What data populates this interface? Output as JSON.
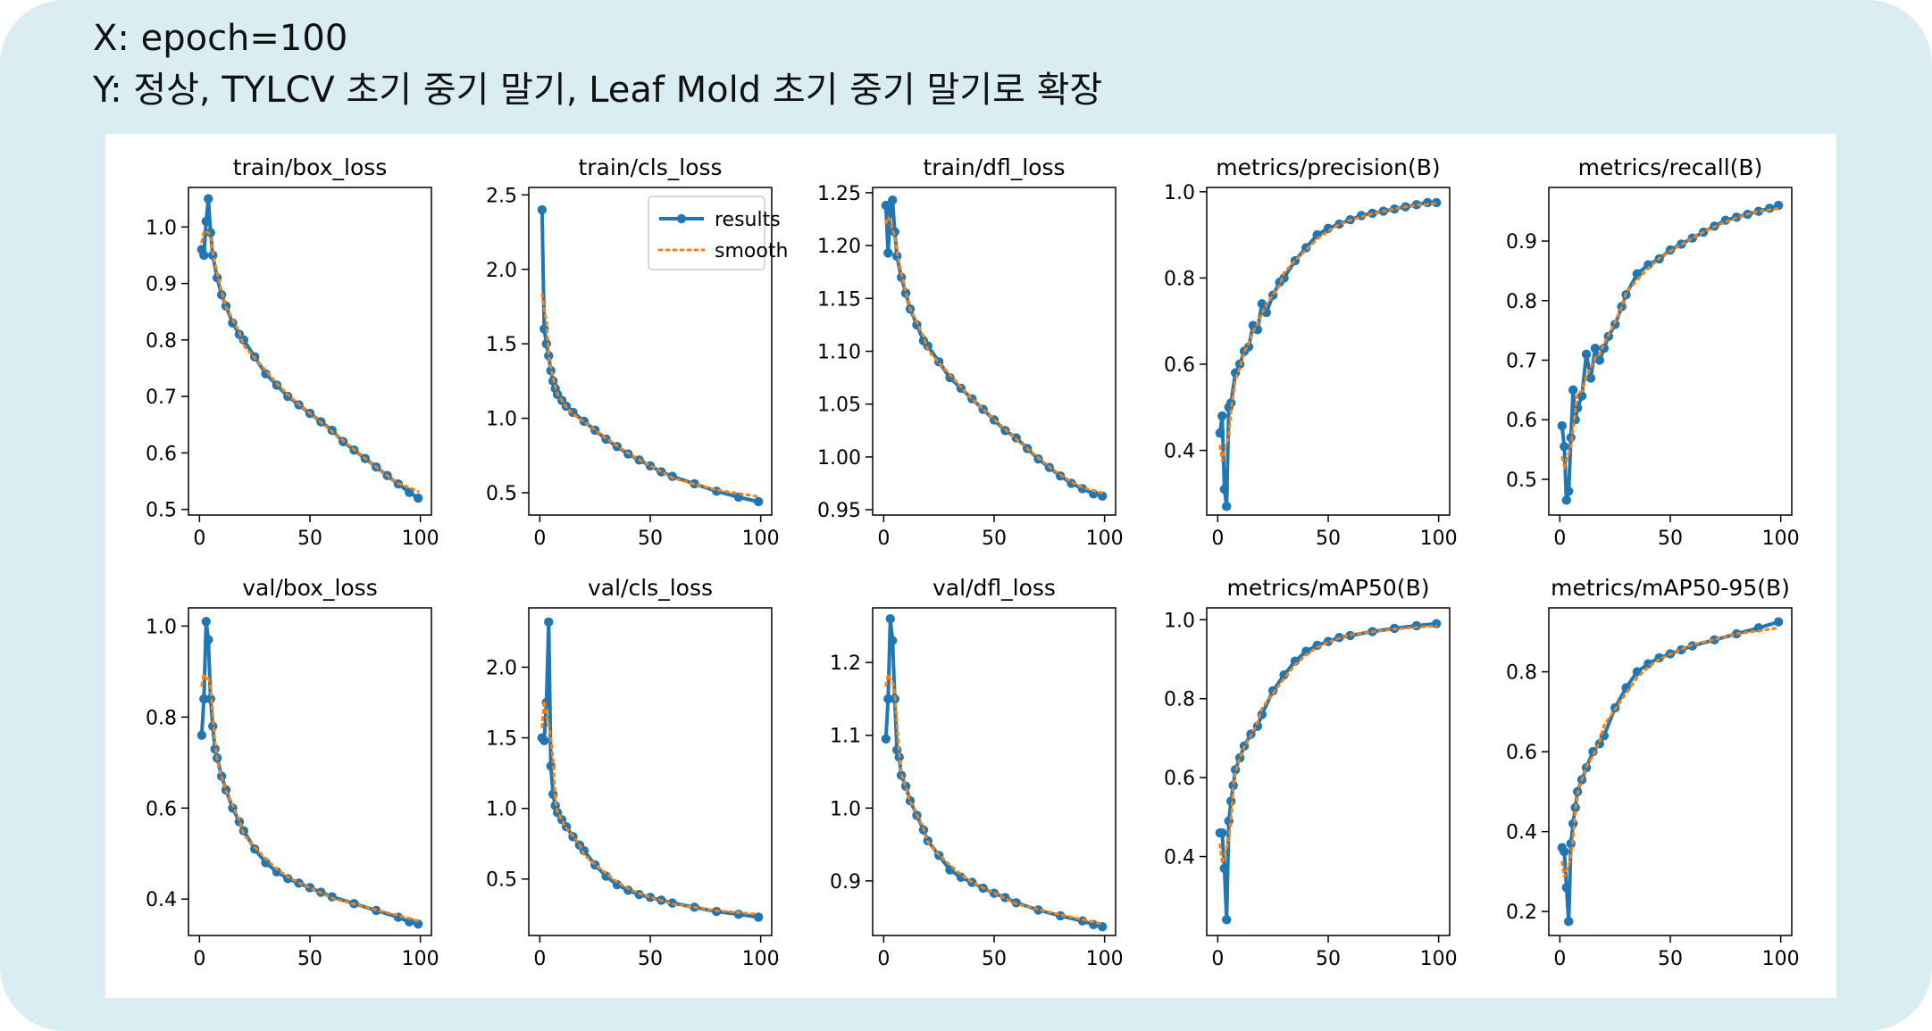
{
  "header": {
    "x_line": "X: epoch=100",
    "y_line": "Y: 정상, TYLCV 초기 중기 말기, Leaf Mold 초기 중기 말기로 확장"
  },
  "legend": {
    "results_label": "results",
    "smooth_label": "smooth",
    "location": "upper-right of train/cls_loss"
  },
  "colors": {
    "results": "#1f77b4",
    "smooth": "#ff7f0e",
    "frame": "#d9edf3",
    "panel": "#ffffff"
  },
  "chart_data": [
    {
      "type": "line",
      "title": "train/box_loss",
      "xlim": [
        -5,
        105
      ],
      "ylim": [
        0.49,
        1.07
      ],
      "xticks": [
        0,
        50,
        100
      ],
      "yticks": [
        0.5,
        0.6,
        0.7,
        0.8,
        0.9,
        1.0
      ],
      "x": [
        1,
        2,
        3,
        4,
        5,
        6,
        8,
        10,
        12,
        15,
        18,
        20,
        25,
        30,
        35,
        40,
        45,
        50,
        55,
        60,
        65,
        70,
        75,
        80,
        85,
        90,
        95,
        99
      ],
      "series": [
        {
          "name": "results",
          "values": [
            0.96,
            0.95,
            1.01,
            1.05,
            0.99,
            0.95,
            0.91,
            0.88,
            0.86,
            0.83,
            0.81,
            0.8,
            0.77,
            0.74,
            0.72,
            0.7,
            0.685,
            0.67,
            0.655,
            0.64,
            0.62,
            0.605,
            0.59,
            0.575,
            0.56,
            0.545,
            0.53,
            0.52
          ]
        }
      ]
    },
    {
      "type": "line",
      "title": "train/cls_loss",
      "xlim": [
        -5,
        105
      ],
      "ylim": [
        0.35,
        2.55
      ],
      "xticks": [
        0,
        50,
        100
      ],
      "yticks": [
        0.5,
        1.0,
        1.5,
        2.0,
        2.5
      ],
      "x": [
        1,
        2,
        3,
        4,
        5,
        6,
        7,
        8,
        10,
        12,
        15,
        20,
        25,
        30,
        35,
        40,
        45,
        50,
        55,
        60,
        70,
        80,
        90,
        99
      ],
      "series": [
        {
          "name": "results",
          "values": [
            2.4,
            1.6,
            1.5,
            1.42,
            1.32,
            1.25,
            1.2,
            1.16,
            1.12,
            1.08,
            1.04,
            0.98,
            0.92,
            0.86,
            0.81,
            0.76,
            0.72,
            0.68,
            0.64,
            0.61,
            0.56,
            0.51,
            0.47,
            0.44
          ]
        }
      ]
    },
    {
      "type": "line",
      "title": "train/dfl_loss",
      "xlim": [
        -5,
        105
      ],
      "ylim": [
        0.945,
        1.255
      ],
      "xticks": [
        0,
        50,
        100
      ],
      "yticks": [
        0.95,
        1.0,
        1.05,
        1.1,
        1.15,
        1.2,
        1.25
      ],
      "x": [
        1,
        2,
        3,
        4,
        5,
        6,
        8,
        10,
        12,
        15,
        18,
        20,
        25,
        30,
        35,
        40,
        45,
        50,
        55,
        60,
        65,
        70,
        75,
        80,
        85,
        90,
        95,
        99
      ],
      "series": [
        {
          "name": "results",
          "values": [
            1.238,
            1.193,
            1.233,
            1.243,
            1.213,
            1.19,
            1.17,
            1.155,
            1.14,
            1.125,
            1.11,
            1.105,
            1.09,
            1.075,
            1.065,
            1.055,
            1.045,
            1.035,
            1.025,
            1.018,
            1.008,
            0.998,
            0.99,
            0.982,
            0.975,
            0.97,
            0.965,
            0.963
          ]
        }
      ]
    },
    {
      "type": "line",
      "title": "metrics/precision(B)",
      "xlim": [
        -5,
        105
      ],
      "ylim": [
        0.25,
        1.01
      ],
      "xticks": [
        0,
        50,
        100
      ],
      "yticks": [
        0.4,
        0.6,
        0.8,
        1.0
      ],
      "x": [
        1,
        2,
        3,
        4,
        5,
        6,
        8,
        10,
        12,
        14,
        16,
        18,
        20,
        22,
        25,
        28,
        30,
        35,
        40,
        45,
        50,
        55,
        60,
        65,
        70,
        75,
        80,
        85,
        90,
        95,
        99
      ],
      "series": [
        {
          "name": "results",
          "values": [
            0.44,
            0.48,
            0.31,
            0.27,
            0.5,
            0.51,
            0.58,
            0.6,
            0.63,
            0.64,
            0.69,
            0.68,
            0.74,
            0.72,
            0.76,
            0.79,
            0.8,
            0.84,
            0.87,
            0.9,
            0.915,
            0.925,
            0.935,
            0.945,
            0.95,
            0.955,
            0.96,
            0.965,
            0.97,
            0.975,
            0.975
          ]
        }
      ]
    },
    {
      "type": "line",
      "title": "metrics/recall(B)",
      "xlim": [
        -5,
        105
      ],
      "ylim": [
        0.44,
        0.99
      ],
      "xticks": [
        0,
        50,
        100
      ],
      "yticks": [
        0.5,
        0.6,
        0.7,
        0.8,
        0.9
      ],
      "x": [
        1,
        2,
        3,
        4,
        5,
        6,
        7,
        8,
        10,
        12,
        14,
        16,
        18,
        20,
        22,
        25,
        28,
        30,
        35,
        40,
        45,
        50,
        55,
        60,
        65,
        70,
        75,
        80,
        85,
        90,
        95,
        99
      ],
      "series": [
        {
          "name": "results",
          "values": [
            0.59,
            0.555,
            0.465,
            0.48,
            0.57,
            0.65,
            0.6,
            0.62,
            0.64,
            0.71,
            0.67,
            0.72,
            0.7,
            0.72,
            0.74,
            0.76,
            0.79,
            0.81,
            0.845,
            0.86,
            0.87,
            0.885,
            0.895,
            0.905,
            0.915,
            0.925,
            0.935,
            0.94,
            0.945,
            0.95,
            0.955,
            0.96
          ]
        }
      ]
    },
    {
      "type": "line",
      "title": "val/box_loss",
      "xlim": [
        -5,
        105
      ],
      "ylim": [
        0.32,
        1.04
      ],
      "xticks": [
        0,
        50,
        100
      ],
      "yticks": [
        0.4,
        0.6,
        0.8,
        1.0
      ],
      "x": [
        1,
        2,
        3,
        4,
        5,
        6,
        7,
        8,
        10,
        12,
        15,
        18,
        20,
        25,
        30,
        35,
        40,
        45,
        50,
        55,
        60,
        70,
        80,
        90,
        95,
        99
      ],
      "series": [
        {
          "name": "results",
          "values": [
            0.76,
            0.84,
            1.01,
            0.97,
            0.84,
            0.78,
            0.73,
            0.71,
            0.67,
            0.64,
            0.6,
            0.57,
            0.55,
            0.51,
            0.48,
            0.46,
            0.445,
            0.435,
            0.425,
            0.415,
            0.405,
            0.39,
            0.375,
            0.36,
            0.35,
            0.345
          ]
        }
      ]
    },
    {
      "type": "line",
      "title": "val/cls_loss",
      "xlim": [
        -5,
        105
      ],
      "ylim": [
        0.1,
        2.42
      ],
      "xticks": [
        0,
        50,
        100
      ],
      "yticks": [
        0.5,
        1.0,
        1.5,
        2.0
      ],
      "x": [
        1,
        2,
        3,
        4,
        5,
        6,
        7,
        8,
        10,
        12,
        15,
        18,
        20,
        25,
        30,
        35,
        40,
        45,
        50,
        55,
        60,
        70,
        80,
        90,
        99
      ],
      "series": [
        {
          "name": "results",
          "values": [
            1.5,
            1.48,
            1.75,
            2.32,
            1.3,
            1.1,
            1.02,
            0.97,
            0.92,
            0.87,
            0.8,
            0.74,
            0.7,
            0.6,
            0.52,
            0.46,
            0.42,
            0.39,
            0.37,
            0.35,
            0.33,
            0.3,
            0.27,
            0.25,
            0.23
          ]
        }
      ]
    },
    {
      "type": "line",
      "title": "val/dfl_loss",
      "xlim": [
        -5,
        105
      ],
      "ylim": [
        0.825,
        1.275
      ],
      "xticks": [
        0,
        50,
        100
      ],
      "yticks": [
        0.9,
        1.0,
        1.1,
        1.2
      ],
      "x": [
        1,
        2,
        3,
        4,
        5,
        6,
        7,
        8,
        10,
        12,
        15,
        18,
        20,
        25,
        30,
        35,
        40,
        45,
        50,
        55,
        60,
        70,
        80,
        90,
        95,
        99
      ],
      "series": [
        {
          "name": "results",
          "values": [
            1.095,
            1.15,
            1.26,
            1.23,
            1.15,
            1.08,
            1.07,
            1.045,
            1.03,
            1.01,
            0.99,
            0.97,
            0.955,
            0.935,
            0.915,
            0.905,
            0.898,
            0.89,
            0.883,
            0.877,
            0.87,
            0.86,
            0.852,
            0.845,
            0.84,
            0.837
          ]
        }
      ]
    },
    {
      "type": "line",
      "title": "metrics/mAP50(B)",
      "xlim": [
        -5,
        105
      ],
      "ylim": [
        0.2,
        1.03
      ],
      "xticks": [
        0,
        50,
        100
      ],
      "yticks": [
        0.4,
        0.6,
        0.8,
        1.0
      ],
      "x": [
        1,
        2,
        3,
        4,
        5,
        6,
        7,
        8,
        10,
        12,
        15,
        18,
        20,
        25,
        30,
        35,
        40,
        45,
        50,
        55,
        60,
        70,
        80,
        90,
        99
      ],
      "series": [
        {
          "name": "results",
          "values": [
            0.46,
            0.46,
            0.37,
            0.24,
            0.49,
            0.54,
            0.58,
            0.62,
            0.65,
            0.68,
            0.71,
            0.73,
            0.76,
            0.82,
            0.86,
            0.895,
            0.92,
            0.935,
            0.945,
            0.955,
            0.96,
            0.97,
            0.978,
            0.985,
            0.99
          ]
        }
      ]
    },
    {
      "type": "line",
      "title": "metrics/mAP50-95(B)",
      "xlim": [
        -5,
        105
      ],
      "ylim": [
        0.14,
        0.96
      ],
      "xticks": [
        0,
        50,
        100
      ],
      "yticks": [
        0.2,
        0.4,
        0.6,
        0.8
      ],
      "x": [
        1,
        2,
        3,
        4,
        5,
        6,
        7,
        8,
        10,
        12,
        15,
        18,
        20,
        25,
        30,
        35,
        40,
        45,
        50,
        55,
        60,
        70,
        80,
        90,
        99
      ],
      "series": [
        {
          "name": "results",
          "values": [
            0.36,
            0.35,
            0.26,
            0.175,
            0.37,
            0.42,
            0.46,
            0.5,
            0.53,
            0.56,
            0.6,
            0.62,
            0.64,
            0.71,
            0.76,
            0.8,
            0.82,
            0.835,
            0.845,
            0.855,
            0.865,
            0.88,
            0.895,
            0.91,
            0.925
          ]
        }
      ]
    }
  ]
}
